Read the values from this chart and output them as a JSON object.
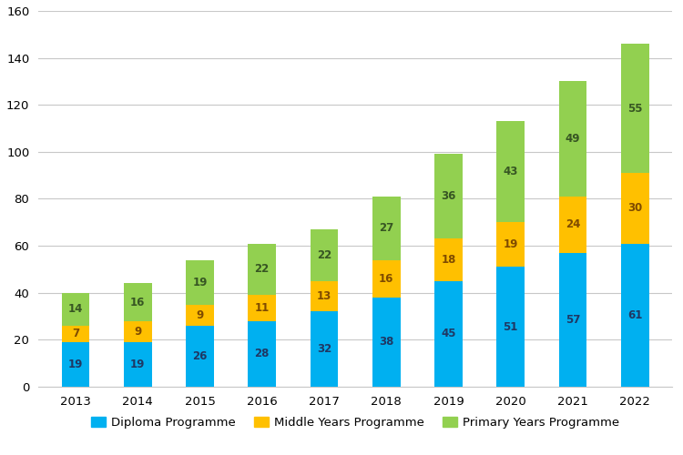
{
  "years": [
    "2013",
    "2014",
    "2015",
    "2016",
    "2017",
    "2018",
    "2019",
    "2020",
    "2021",
    "2022"
  ],
  "diploma": [
    19,
    19,
    26,
    28,
    32,
    38,
    45,
    51,
    57,
    61
  ],
  "middle_years": [
    7,
    9,
    9,
    11,
    13,
    16,
    18,
    19,
    24,
    30
  ],
  "primary_years": [
    14,
    16,
    19,
    22,
    22,
    27,
    36,
    43,
    49,
    55
  ],
  "diploma_color": "#00B0F0",
  "middle_years_color": "#FFC000",
  "primary_years_color": "#92D050",
  "background_color": "#FFFFFF",
  "ylim": [
    0,
    160
  ],
  "yticks": [
    0,
    20,
    40,
    60,
    80,
    100,
    120,
    140,
    160
  ],
  "legend_labels": [
    "Diploma Programme",
    "Middle Years Programme",
    "Primary Years Programme"
  ],
  "label_fontsize": 8.5,
  "tick_fontsize": 9.5,
  "legend_fontsize": 9.5,
  "bar_width": 0.45,
  "grid_color": "#C8C8C8",
  "label_color_diploma": "#1F3864",
  "label_color_middle": "#7F4B00",
  "label_color_primary": "#375623"
}
